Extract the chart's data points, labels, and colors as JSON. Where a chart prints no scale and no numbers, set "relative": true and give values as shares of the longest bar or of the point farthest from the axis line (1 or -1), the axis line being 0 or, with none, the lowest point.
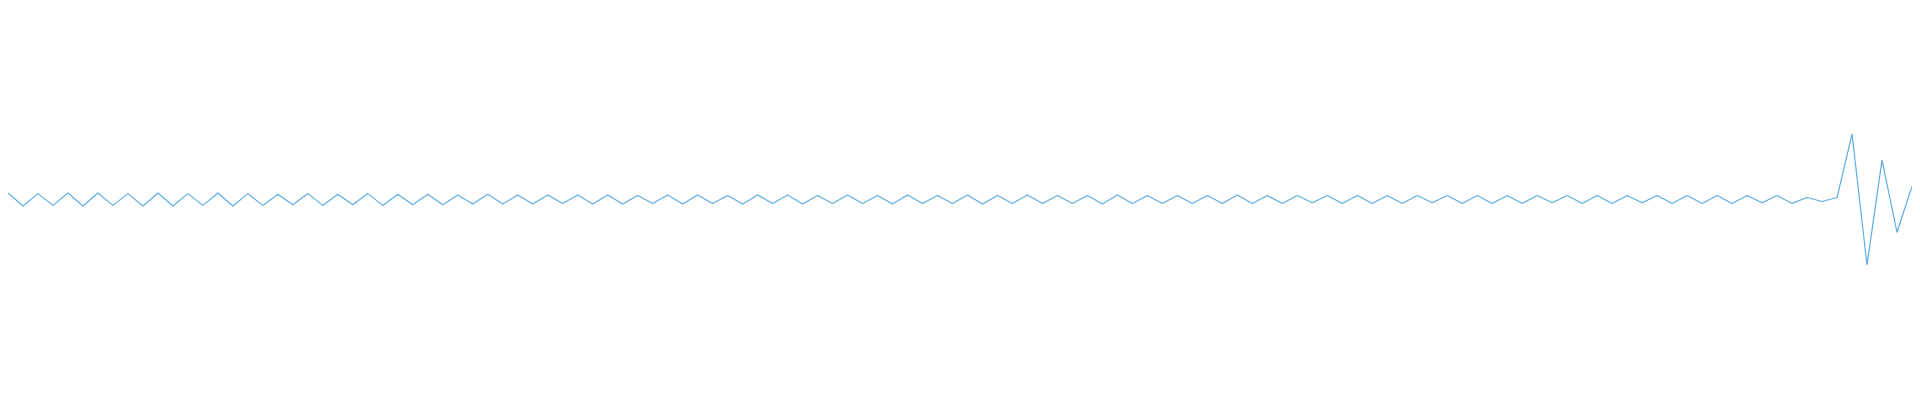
{
  "chart_data": {
    "type": "line",
    "relative": true,
    "color": "#5dade2",
    "categories": [
      null,
      null,
      null,
      null,
      null,
      null,
      null,
      null,
      null,
      null,
      null,
      null,
      null,
      null,
      null,
      null,
      null,
      null,
      null,
      null,
      null,
      null,
      null,
      null,
      null,
      null,
      null,
      null,
      null,
      null,
      null,
      null,
      null,
      null,
      null,
      null,
      null,
      null,
      null,
      null,
      null,
      null,
      null,
      null,
      null,
      null,
      null,
      null,
      null,
      null,
      null,
      null,
      null,
      null,
      null,
      null,
      null,
      null,
      null,
      null,
      null,
      null,
      null,
      null,
      null,
      null,
      null,
      null,
      null,
      null,
      null,
      null,
      null,
      null,
      null,
      null,
      null,
      null,
      null,
      null,
      null,
      null,
      null,
      null,
      null,
      null,
      null,
      null,
      null,
      null,
      null,
      null,
      null,
      null,
      null,
      null,
      null,
      null,
      null,
      null,
      null,
      null,
      null,
      null,
      null,
      null,
      null,
      null,
      null,
      null,
      null,
      null,
      null,
      null,
      null,
      null,
      null,
      null,
      null,
      null,
      null,
      null,
      null,
      null,
      null,
      null,
      null,
      null
    ],
    "values": [
      0.55,
      0.45,
      0.545,
      0.455,
      0.55,
      0.45,
      0.55,
      0.455,
      0.545,
      0.45,
      0.55,
      0.45,
      0.545,
      0.455,
      0.55,
      0.45,
      0.545,
      0.455,
      0.54,
      0.46,
      0.545,
      0.455,
      0.54,
      0.46,
      0.545,
      0.455,
      0.54,
      0.46,
      0.54,
      0.46,
      0.535,
      0.465,
      0.54,
      0.465,
      0.535,
      0.465,
      0.535,
      0.47,
      0.535,
      0.465,
      0.535,
      0.465,
      0.53,
      0.47,
      0.535,
      0.465,
      0.535,
      0.47,
      0.53,
      0.465,
      0.535,
      0.47,
      0.535,
      0.465,
      0.53,
      0.47,
      0.535,
      0.47,
      0.53,
      0.465,
      0.535,
      0.47,
      0.53,
      0.47,
      0.535,
      0.465,
      0.53,
      0.47,
      0.535,
      0.47,
      0.53,
      0.47,
      0.53,
      0.465,
      0.535,
      0.47,
      0.53,
      0.47,
      0.53,
      0.47,
      0.53,
      0.47,
      0.535,
      0.47,
      0.53,
      0.47,
      0.53,
      0.475,
      0.53,
      0.47,
      0.53,
      0.47,
      0.53,
      0.47,
      0.53,
      0.475,
      0.53,
      0.47,
      0.53,
      0.47,
      0.53,
      0.47,
      0.53,
      0.475,
      0.53,
      0.47,
      0.53,
      0.47,
      0.53,
      0.475,
      0.53,
      0.47,
      0.53,
      0.47,
      0.53,
      0.47,
      0.53,
      0.475,
      0.53,
      0.47,
      0.515,
      0.485,
      0.515,
      1,
      0,
      0.8,
      0.25,
      0.6
    ]
  }
}
